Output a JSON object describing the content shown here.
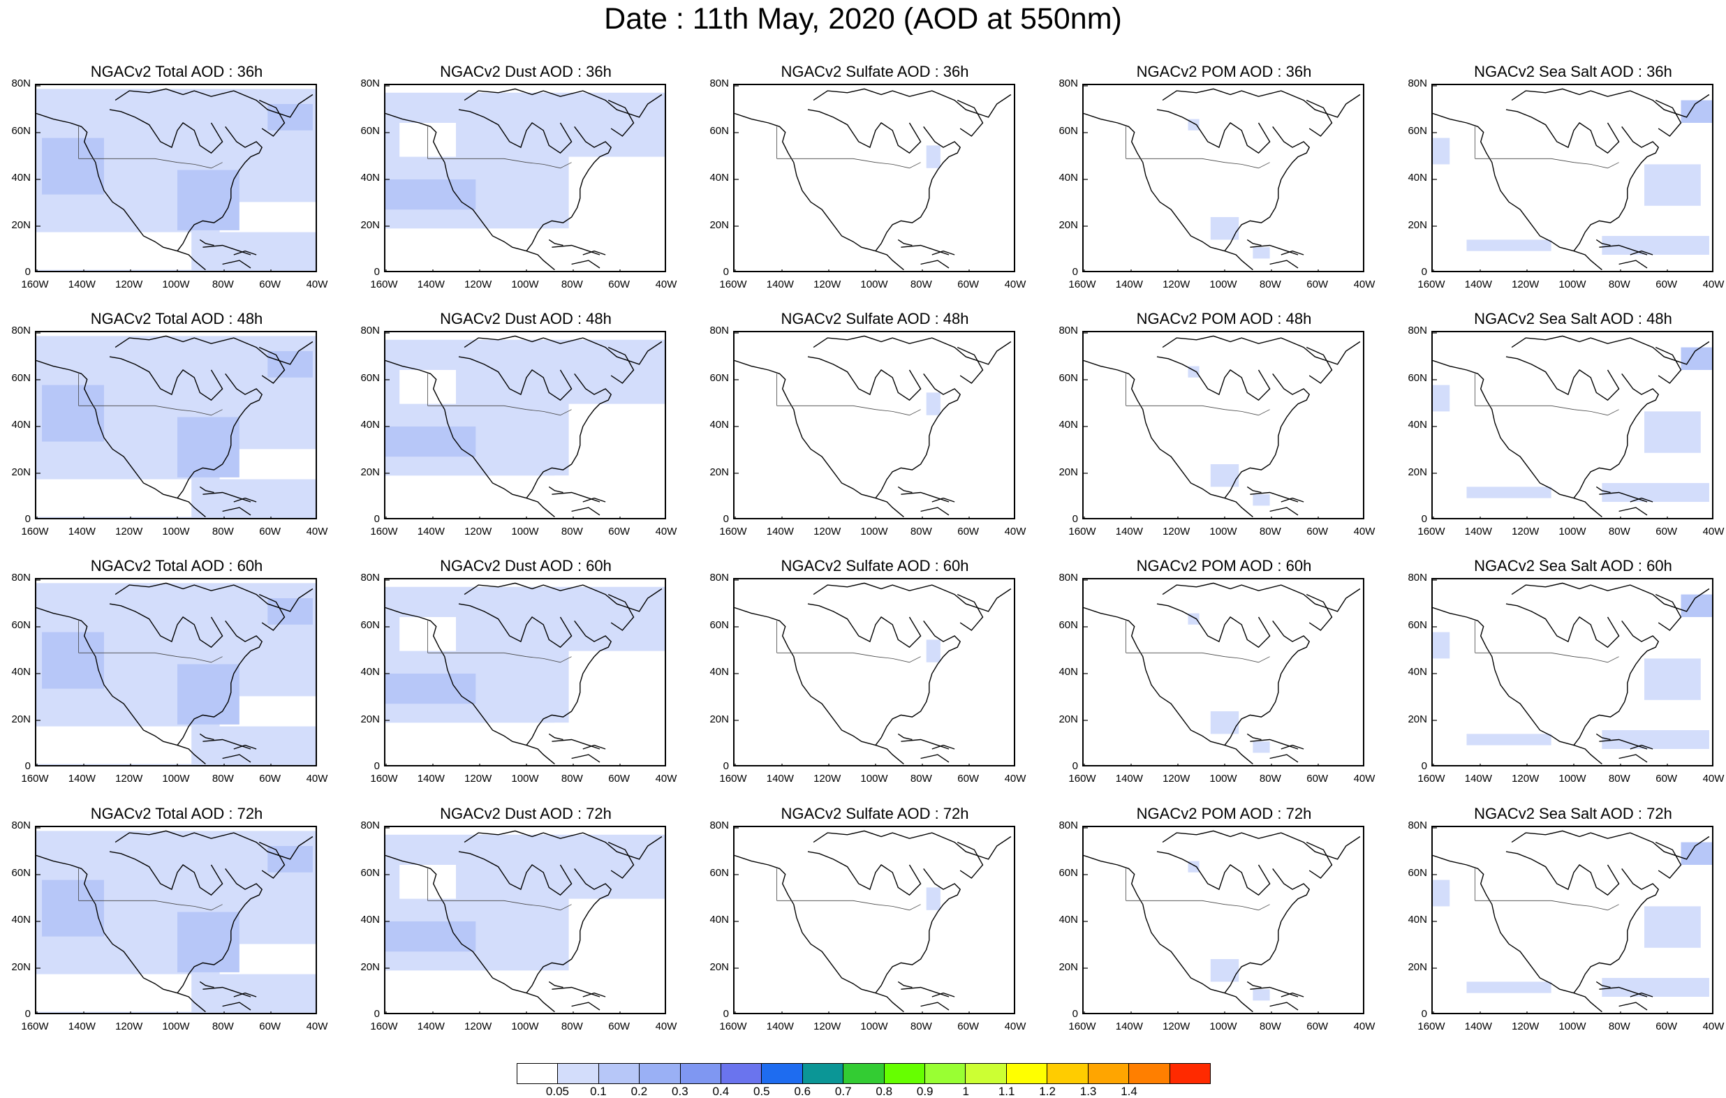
{
  "page_title": "Date : 11th May, 2020 (AOD at 550nm)",
  "map": {
    "lat_labels": [
      "80N",
      "60N",
      "40N",
      "20N",
      "0"
    ],
    "lon_labels": [
      "160W",
      "140W",
      "120W",
      "100W",
      "80W",
      "60W",
      "40W"
    ],
    "extent": {
      "lon": [
        -160,
        -40
      ],
      "lat": [
        0,
        80
      ]
    }
  },
  "panels": [
    [
      {
        "title": "NGACv2 Total AOD : 36h",
        "field": "total"
      },
      {
        "title": "NGACv2 Dust AOD : 36h",
        "field": "dust"
      },
      {
        "title": "NGACv2 Sulfate AOD : 36h",
        "field": "sulfate"
      },
      {
        "title": "NGACv2 POM AOD : 36h",
        "field": "pom"
      },
      {
        "title": "NGACv2 Sea Salt AOD : 36h",
        "field": "seasalt"
      }
    ],
    [
      {
        "title": "NGACv2 Total AOD : 48h",
        "field": "total"
      },
      {
        "title": "NGACv2 Dust AOD : 48h",
        "field": "dust"
      },
      {
        "title": "NGACv2 Sulfate AOD : 48h",
        "field": "sulfate"
      },
      {
        "title": "NGACv2 POM AOD : 48h",
        "field": "pom"
      },
      {
        "title": "NGACv2 Sea Salt AOD : 48h",
        "field": "seasalt"
      }
    ],
    [
      {
        "title": "NGACv2 Total AOD : 60h",
        "field": "total"
      },
      {
        "title": "NGACv2 Dust AOD : 60h",
        "field": "dust"
      },
      {
        "title": "NGACv2 Sulfate AOD : 60h",
        "field": "sulfate"
      },
      {
        "title": "NGACv2 POM AOD : 60h",
        "field": "pom"
      },
      {
        "title": "NGACv2 Sea Salt AOD : 60h",
        "field": "seasalt"
      }
    ],
    [
      {
        "title": "NGACv2 Total AOD : 72h",
        "field": "total"
      },
      {
        "title": "NGACv2 Dust AOD : 72h",
        "field": "dust"
      },
      {
        "title": "NGACv2 Sulfate AOD : 72h",
        "field": "sulfate"
      },
      {
        "title": "NGACv2 POM AOD : 72h",
        "field": "pom"
      },
      {
        "title": "NGACv2 Sea Salt  AOD : 72h",
        "field": "seasalt"
      }
    ]
  ],
  "colorbar": {
    "colors": [
      "#ffffff",
      "#d3ddfb",
      "#b7c7f8",
      "#9ab0f5",
      "#7f97f2",
      "#6a74ee",
      "#1e6cf0",
      "#0b9696",
      "#33cc33",
      "#66ff00",
      "#99ff33",
      "#ccff33",
      "#ffff00",
      "#ffcc00",
      "#ffa500",
      "#ff7f00",
      "#ff2a00"
    ],
    "labels": [
      "0.05",
      "0.1",
      "0.2",
      "0.3",
      "0.4",
      "0.5",
      "0.6",
      "0.7",
      "0.8",
      "0.9",
      "1",
      "1.1",
      "1.2",
      "1.3",
      "1.4"
    ]
  }
}
